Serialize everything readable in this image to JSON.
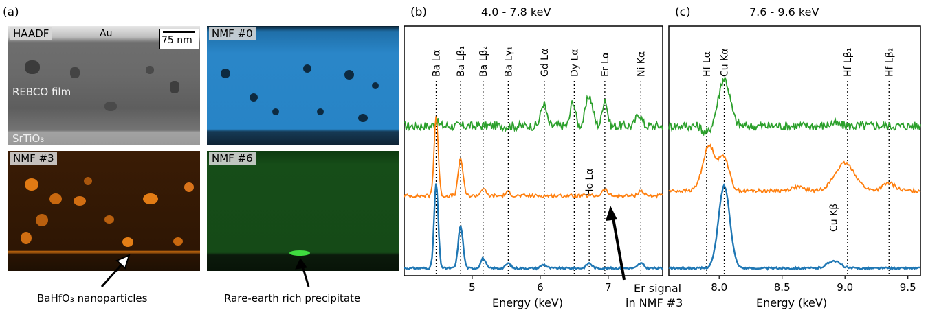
{
  "panel_a": {
    "letter": "(a)",
    "haadf": {
      "label": "HAADF",
      "au": "Au",
      "scale_bar": "75 nm",
      "film": "REBCO film",
      "substrate": "SrTiO₃"
    },
    "nmf0": {
      "label": "NMF #0"
    },
    "nmf3": {
      "label": "NMF #3"
    },
    "nmf6": {
      "label": "NMF #6"
    },
    "caption_left": "BaHfO₃ nanoparticles",
    "caption_right": "Rare-earth rich precipitate"
  },
  "panel_b": {
    "letter": "(b)",
    "title": "4.0 - 7.8 keV",
    "xlabel": "Energy (keV)",
    "annotation": [
      "Er signal",
      "in NMF #3"
    ]
  },
  "panel_c": {
    "letter": "(c)",
    "title": "7.6 - 9.6 keV",
    "xlabel": "Energy (keV)"
  },
  "colors": {
    "blue": "#1f77b4",
    "orange": "#ff7f0e",
    "green": "#2ca02c"
  },
  "chart_data": [
    {
      "type": "line",
      "title": "4.0 - 7.8 keV",
      "xlabel": "Energy (keV)",
      "xlim": [
        4.0,
        7.8
      ],
      "xticks": [
        5,
        6,
        7
      ],
      "xtick_labels": [
        "5",
        "6",
        "7"
      ],
      "lines": [
        {
          "label": "Ba Lα",
          "x": 4.47
        },
        {
          "label": "Ba Lβ₁",
          "x": 4.83
        },
        {
          "label": "Ba Lβ₂",
          "x": 5.16
        },
        {
          "label": "Ba Lγ₁",
          "x": 5.53
        },
        {
          "label": "Gd Lα",
          "x": 6.06
        },
        {
          "label": "Dy Lα",
          "x": 6.5
        },
        {
          "label": "Ho Lα",
          "x": 6.72
        },
        {
          "label": "Er Lα",
          "x": 6.95
        },
        {
          "label": "Ni Kα",
          "x": 7.48
        }
      ],
      "series": [
        {
          "color": "#2ca02c",
          "baseline": 0.6,
          "peaks": [
            [
              4.47,
              0.02,
              0.03
            ],
            [
              6.05,
              0.09,
              0.04
            ],
            [
              6.48,
              0.1,
              0.035
            ],
            [
              6.72,
              0.12,
              0.05
            ],
            [
              6.95,
              0.11,
              0.035
            ],
            [
              7.45,
              0.05,
              0.04
            ]
          ]
        },
        {
          "color": "#ff7f0e",
          "baseline": 0.32,
          "peaks": [
            [
              4.47,
              0.32,
              0.03
            ],
            [
              4.83,
              0.15,
              0.035
            ],
            [
              5.16,
              0.03,
              0.035
            ],
            [
              5.53,
              0.015,
              0.035
            ],
            [
              6.95,
              0.025,
              0.04
            ],
            [
              7.48,
              0.02,
              0.04
            ]
          ]
        },
        {
          "color": "#1f77b4",
          "baseline": 0.03,
          "peaks": [
            [
              4.47,
              0.34,
              0.03
            ],
            [
              4.83,
              0.17,
              0.035
            ],
            [
              5.16,
              0.04,
              0.035
            ],
            [
              5.53,
              0.02,
              0.035
            ],
            [
              6.05,
              0.015,
              0.04
            ],
            [
              6.72,
              0.02,
              0.04
            ],
            [
              7.48,
              0.02,
              0.04
            ]
          ]
        }
      ]
    },
    {
      "type": "line",
      "title": "7.6 - 9.6 keV",
      "xlabel": "Energy (keV)",
      "xlim": [
        7.6,
        9.6
      ],
      "xticks": [
        8.0,
        8.5,
        9.0,
        9.5
      ],
      "xtick_labels": [
        "8.0",
        "8.5",
        "9.0",
        "9.5"
      ],
      "lines": [
        {
          "label": "Hf Lα",
          "x": 7.9
        },
        {
          "label": "Cu Kα",
          "x": 8.04
        },
        {
          "label": "Hf Lβ₁",
          "x": 9.02
        },
        {
          "label": "Hf Lβ₂",
          "x": 9.35
        }
      ],
      "extra_labels": [
        {
          "label": "Cu Kβ",
          "x": 8.91
        }
      ],
      "series": [
        {
          "color": "#2ca02c",
          "baseline": 0.6,
          "peaks": [
            [
              7.9,
              -0.03,
              0.03
            ],
            [
              8.04,
              0.19,
              0.045
            ],
            [
              8.91,
              0.01,
              0.04
            ]
          ]
        },
        {
          "color": "#ff7f0e",
          "baseline": 0.34,
          "peaks": [
            [
              7.92,
              0.18,
              0.05
            ],
            [
              8.04,
              0.13,
              0.04
            ],
            [
              9.0,
              0.11,
              0.08
            ],
            [
              9.35,
              0.03,
              0.05
            ],
            [
              8.62,
              0.015,
              0.05
            ]
          ]
        },
        {
          "color": "#1f77b4",
          "baseline": 0.03,
          "peaks": [
            [
              8.04,
              0.33,
              0.045
            ],
            [
              8.91,
              0.03,
              0.05
            ]
          ]
        }
      ]
    }
  ]
}
